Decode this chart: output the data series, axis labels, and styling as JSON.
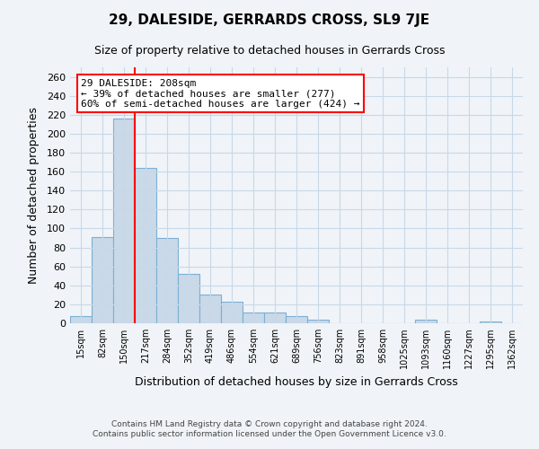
{
  "title": "29, DALESIDE, GERRARDS CROSS, SL9 7JE",
  "subtitle": "Size of property relative to detached houses in Gerrards Cross",
  "xlabel": "Distribution of detached houses by size in Gerrards Cross",
  "ylabel": "Number of detached properties",
  "bin_labels": [
    "15sqm",
    "82sqm",
    "150sqm",
    "217sqm",
    "284sqm",
    "352sqm",
    "419sqm",
    "486sqm",
    "554sqm",
    "621sqm",
    "689sqm",
    "756sqm",
    "823sqm",
    "891sqm",
    "958sqm",
    "1025sqm",
    "1093sqm",
    "1160sqm",
    "1227sqm",
    "1295sqm",
    "1362sqm"
  ],
  "bar_values": [
    8,
    91,
    216,
    164,
    90,
    52,
    30,
    23,
    11,
    11,
    8,
    4,
    0,
    0,
    0,
    0,
    4,
    0,
    0,
    2,
    0
  ],
  "bar_color": "#c9d9e8",
  "bar_edge_color": "#7bafd4",
  "reference_line_color": "red",
  "annotation_line1": "29 DALESIDE: 208sqm",
  "annotation_line2": "← 39% of detached houses are smaller (277)",
  "annotation_line3": "60% of semi-detached houses are larger (424) →",
  "annotation_box_color": "white",
  "annotation_box_edge_color": "red",
  "ylim": [
    0,
    270
  ],
  "yticks": [
    0,
    20,
    40,
    60,
    80,
    100,
    120,
    140,
    160,
    180,
    200,
    220,
    240,
    260
  ],
  "footer_line1": "Contains HM Land Registry data © Crown copyright and database right 2024.",
  "footer_line2": "Contains public sector information licensed under the Open Government Licence v3.0.",
  "bg_color": "#f0f4f8",
  "grid_color": "#c8d8e8"
}
